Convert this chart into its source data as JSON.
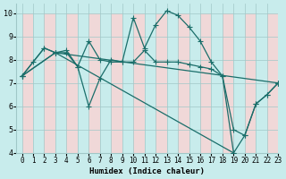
{
  "xlabel": "Humidex (Indice chaleur)",
  "xlim": [
    -0.5,
    23
  ],
  "ylim": [
    4,
    10.4
  ],
  "yticks": [
    4,
    5,
    6,
    7,
    8,
    9,
    10
  ],
  "xticks": [
    0,
    1,
    2,
    3,
    4,
    5,
    6,
    7,
    8,
    9,
    10,
    11,
    12,
    13,
    14,
    15,
    16,
    17,
    18,
    19,
    20,
    21,
    22,
    23
  ],
  "bg_color": "#c8ecec",
  "cell_color": "#f0d8d8",
  "grid_color": "#a0c8c8",
  "line_color": "#1a6e6a",
  "lines": [
    {
      "x": [
        0,
        1,
        2,
        3,
        4,
        5,
        6,
        7,
        8,
        9,
        10,
        11,
        12,
        13,
        14,
        15,
        16,
        17,
        18,
        19,
        20,
        21,
        22,
        23
      ],
      "y": [
        7.3,
        7.9,
        8.5,
        8.3,
        8.4,
        7.7,
        8.8,
        8.0,
        7.9,
        7.9,
        9.8,
        8.5,
        9.5,
        10.1,
        9.9,
        9.4,
        8.8,
        7.9,
        7.3,
        5.0,
        4.75,
        6.1,
        6.5,
        7.0
      ]
    },
    {
      "x": [
        0,
        2,
        3,
        4,
        5,
        6,
        7,
        8,
        9,
        10,
        11,
        12,
        13,
        14,
        15,
        16,
        17,
        18,
        19,
        20,
        21,
        22,
        23
      ],
      "y": [
        7.3,
        8.5,
        8.3,
        8.3,
        7.7,
        6.0,
        7.2,
        8.0,
        7.9,
        7.9,
        8.4,
        7.9,
        7.9,
        7.9,
        7.8,
        7.7,
        7.6,
        7.3,
        4.0,
        4.75,
        6.1,
        6.5,
        7.0
      ]
    },
    {
      "x": [
        0,
        3,
        23
      ],
      "y": [
        7.3,
        8.3,
        7.0
      ]
    },
    {
      "x": [
        0,
        3,
        19
      ],
      "y": [
        7.3,
        8.3,
        4.0
      ]
    }
  ],
  "marker": "+",
  "markersize": 4,
  "linewidth": 0.9
}
